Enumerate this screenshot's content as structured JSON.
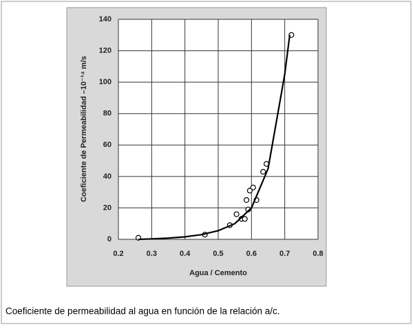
{
  "chart_data": {
    "type": "scatter",
    "xlabel": "Agua / Cemento",
    "ylabel": "Coeficiente de Permeabilidad –10⁻¹⁴ m/s",
    "caption": "Coeficiente de permeabilidad al agua en función de la relación a/c.",
    "xlim": [
      0.2,
      0.8
    ],
    "ylim": [
      0,
      140
    ],
    "xticks": [
      0.2,
      0.3,
      0.4,
      0.5,
      0.6,
      0.7,
      0.8
    ],
    "yticks": [
      0,
      20,
      40,
      60,
      80,
      100,
      120,
      140
    ],
    "grid": true,
    "series": [
      {
        "type": "scatter",
        "color": "#000000",
        "x": [
          0.26,
          0.46,
          0.535,
          0.555,
          0.57,
          0.58,
          0.585,
          0.59,
          0.595,
          0.605,
          0.615,
          0.635,
          0.645,
          0.72
        ],
        "values": [
          1,
          3,
          9,
          16,
          13,
          13,
          25,
          19,
          31,
          33,
          25,
          43,
          48,
          130
        ]
      },
      {
        "type": "line",
        "color": "#000000",
        "x": [
          0.26,
          0.3,
          0.35,
          0.4,
          0.45,
          0.5,
          0.55,
          0.6,
          0.65,
          0.7,
          0.715
        ],
        "values": [
          0,
          0.3,
          0.8,
          1.6,
          3,
          5.5,
          10,
          20,
          45,
          105,
          130
        ]
      }
    ]
  }
}
